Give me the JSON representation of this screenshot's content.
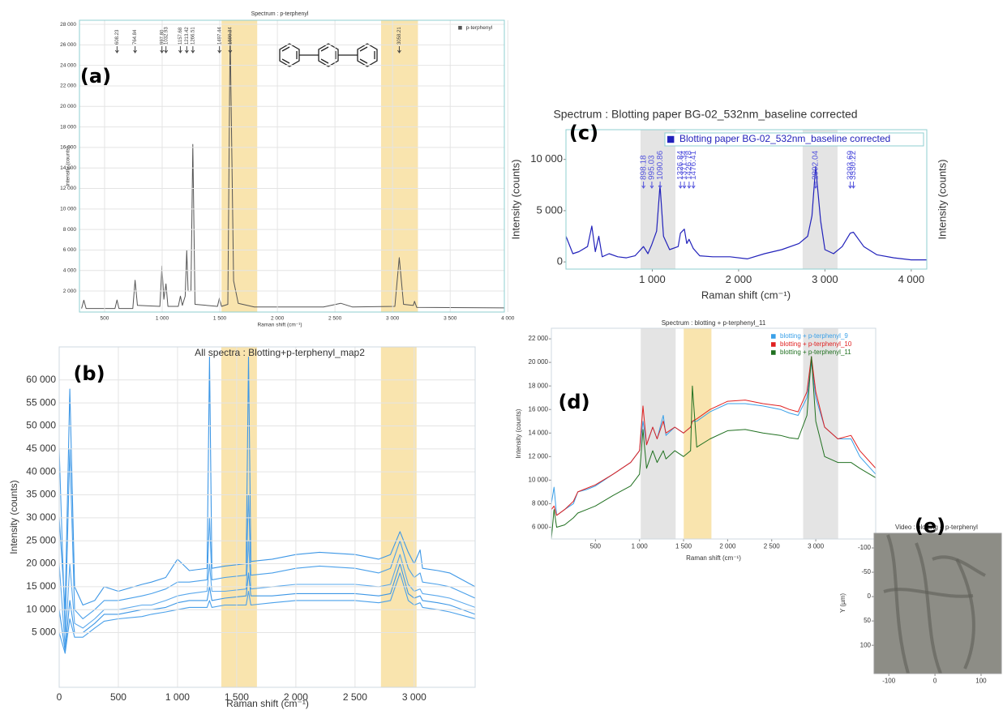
{
  "chart_data": [
    {
      "type": "line",
      "panel_label": "(a)",
      "title": "Spectrum : p-terphenyl",
      "xlabel": "Raman shift (cm⁻¹)",
      "ylabel": "Intensity (counts)",
      "xlim": [
        282,
        3970
      ],
      "ylim": [
        -50,
        28400
      ],
      "grid": true,
      "legend": "upper right",
      "xticks": [
        500,
        {
          "value": 1000,
          "label": "1 000"
        },
        {
          "value": 1500,
          "label": "1 500"
        },
        {
          "value": 2000,
          "label": "2 000"
        },
        {
          "value": 2500,
          "label": "2 500"
        },
        {
          "value": 3000,
          "label": "3 000"
        },
        {
          "value": 3500,
          "label": "3 500"
        },
        {
          "value": 4000,
          "label": "4 000"
        }
      ],
      "yticks": [
        {
          "value": 2000,
          "label": "2 000"
        },
        {
          "value": 4000,
          "label": "4 000"
        },
        {
          "value": 6000,
          "label": "6 000"
        },
        {
          "value": 8000,
          "label": "8 000"
        },
        {
          "value": 10000,
          "label": "10 000"
        },
        {
          "value": 12000,
          "label": "12 000"
        },
        {
          "value": 14000,
          "label": "14 000"
        },
        {
          "value": 16000,
          "label": "16 000"
        },
        {
          "value": 18000,
          "label": "18 000"
        },
        {
          "value": 20000,
          "label": "20 000"
        },
        {
          "value": 22000,
          "label": "22 000"
        },
        {
          "value": 24000,
          "label": "24 000"
        },
        {
          "value": 26000,
          "label": "26 000"
        },
        {
          "value": 28000,
          "label": "28 000"
        }
      ],
      "bands": [
        {
          "x": [
            1515,
            1825
          ],
          "color": "#f6d98c"
        },
        {
          "x": [
            2900,
            3220
          ],
          "color": "#f6d98c"
        }
      ],
      "peak_labels": [
        608.23,
        764.84,
        {
          "value": 997.8,
          "label": "997.80"
        },
        1032.93,
        1157.68,
        1213.42,
        1266.51,
        1497.44,
        1590.34,
        3058.21
      ],
      "x": [
        300,
        320,
        340,
        590,
        608,
        625,
        745,
        765,
        785,
        980,
        998,
        1015,
        1033,
        1050,
        1140,
        1158,
        1175,
        1200,
        1213,
        1225,
        1250,
        1266,
        1285,
        1480,
        1497,
        1515,
        1570,
        1590,
        1620,
        1660,
        1800,
        2400,
        2550,
        2650,
        3020,
        3058,
        3095,
        3180,
        3190,
        3210,
        3970
      ],
      "series": [
        {
          "name": "p-terphenyl",
          "color": "#555555",
          "values": [
            300,
            1100,
            300,
            300,
            1130,
            300,
            300,
            3050,
            600,
            500,
            4450,
            1200,
            2700,
            500,
            500,
            1500,
            600,
            1500,
            5950,
            2000,
            2000,
            16300,
            700,
            500,
            1300,
            500,
            700,
            27400,
            3000,
            800,
            450,
            450,
            800,
            450,
            500,
            5250,
            700,
            600,
            1000,
            400,
            350
          ]
        }
      ]
    },
    {
      "type": "line",
      "panel_label": "(b)",
      "title": "All spectra : Blotting+p-terphenyl_map2",
      "xlabel": "Raman shift (cm⁻¹)",
      "ylabel": "Intensity (counts)",
      "xlim": [
        0,
        3515
      ],
      "ylim": [
        -6900,
        67200
      ],
      "grid": true,
      "xticks": [
        0,
        500,
        {
          "value": 1000,
          "label": "1 000"
        },
        {
          "value": 1500,
          "label": "1 500"
        },
        {
          "value": 2000,
          "label": "2 000"
        },
        {
          "value": 2500,
          "label": "2 500"
        },
        {
          "value": 3000,
          "label": "3 000"
        }
      ],
      "yticks": [
        {
          "value": 5000,
          "label": "5 000"
        },
        {
          "value": 10000,
          "label": "10 000"
        },
        {
          "value": 15000,
          "label": "15 000"
        },
        {
          "value": 20000,
          "label": "20 000"
        },
        {
          "value": 25000,
          "label": "25 000"
        },
        {
          "value": 30000,
          "label": "30 000"
        },
        {
          "value": 35000,
          "label": "35 000"
        },
        {
          "value": 40000,
          "label": "40 000"
        },
        {
          "value": 45000,
          "label": "45 000"
        },
        {
          "value": 50000,
          "label": "50 000"
        },
        {
          "value": 55000,
          "label": "55 000"
        },
        {
          "value": 60000,
          "label": "60 000"
        }
      ],
      "bands": [
        {
          "x": [
            1370,
            1671
          ],
          "color": "#f6d98c"
        },
        {
          "x": [
            2719,
            3020
          ],
          "color": "#f6d98c"
        }
      ],
      "x": [
        0,
        50,
        90,
        130,
        200,
        300,
        380,
        500,
        700,
        780,
        900,
        1000,
        1100,
        1250,
        1270,
        1290,
        1400,
        1580,
        1600,
        1620,
        1800,
        2000,
        2200,
        2500,
        2700,
        2800,
        2880,
        2950,
        3000,
        3050,
        3070,
        3200,
        3300,
        3515
      ],
      "series": [
        {
          "color": "#3d97e6",
          "values": [
            30000,
            10000,
            58000,
            15000,
            11000,
            12000,
            15000,
            14000,
            15500,
            16000,
            17000,
            21000,
            18500,
            19000,
            65000,
            19000,
            19500,
            20000,
            65000,
            20500,
            21000,
            22000,
            22500,
            22000,
            21000,
            22000,
            27000,
            22500,
            20000,
            23000,
            19000,
            18500,
            18000,
            15000
          ]
        },
        {
          "color": "#4aa0ea",
          "values": [
            45000,
            5000,
            45000,
            10000,
            8000,
            10000,
            12000,
            12000,
            13000,
            13500,
            14500,
            16000,
            16000,
            16500,
            30000,
            16500,
            17000,
            17500,
            35000,
            17500,
            18000,
            19000,
            19500,
            19000,
            18000,
            19000,
            25000,
            19000,
            17000,
            18000,
            16000,
            15500,
            15000,
            12500
          ]
        },
        {
          "color": "#5aa8ec",
          "values": [
            20000,
            2000,
            20000,
            7000,
            6000,
            8000,
            10000,
            10000,
            11000,
            11000,
            12000,
            13000,
            13500,
            14000,
            20000,
            14000,
            14000,
            14500,
            25000,
            14500,
            15000,
            15500,
            15500,
            15500,
            15000,
            15500,
            22000,
            15500,
            14000,
            14500,
            13500,
            13000,
            12500,
            10500
          ]
        },
        {
          "color": "#3d97e6",
          "values": [
            10000,
            1000,
            12000,
            5000,
            5000,
            7000,
            9000,
            9000,
            10000,
            10000,
            10500,
            11500,
            12000,
            12000,
            15000,
            12000,
            12500,
            13000,
            18000,
            13000,
            13000,
            13500,
            13500,
            13500,
            13000,
            13500,
            20000,
            13500,
            12500,
            13000,
            12000,
            11500,
            11000,
            9000
          ]
        },
        {
          "color": "#4aa0ea",
          "values": [
            5000,
            500,
            8000,
            4000,
            4000,
            6000,
            7500,
            8000,
            8500,
            9000,
            9500,
            10000,
            10500,
            10500,
            12000,
            10500,
            11000,
            11000,
            14000,
            11000,
            11500,
            12000,
            12000,
            12000,
            11500,
            12000,
            18000,
            12000,
            11000,
            11500,
            10500,
            10000,
            9500,
            8000
          ]
        }
      ]
    },
    {
      "type": "line",
      "panel_label": "(c)",
      "title": "Spectrum : Blotting paper BG-02_532nm_baseline corrected",
      "xlabel": "Raman shift (cm⁻¹)",
      "ylabel": "Intensity (counts)",
      "y2label": "Intensity (counts)",
      "xlim": [
        0,
        4180
      ],
      "ylim": [
        -700,
        12900
      ],
      "grid": false,
      "legend": "upper right",
      "xticks": [
        {
          "value": 1000,
          "label": "1 000"
        },
        {
          "value": 2000,
          "label": "2 000"
        },
        {
          "value": 3000,
          "label": "3 000"
        },
        {
          "value": 4000,
          "label": "4 000"
        }
      ],
      "yticks": [
        0,
        {
          "value": 5000,
          "label": "5 000"
        },
        {
          "value": 10000,
          "label": "10 000"
        }
      ],
      "bands": [
        {
          "x": [
            864,
            1268
          ],
          "color": "#d9d9d9"
        },
        {
          "x": [
            2742,
            3146
          ],
          "color": "#d9d9d9"
        }
      ],
      "peak_labels": [
        898.18,
        995.03,
        1090.86,
        1326.84,
        1371.34,
        1426.78,
        1476.41,
        2892.04,
        3293.69,
        3330.22
      ],
      "x": [
        0,
        80,
        150,
        250,
        300,
        340,
        380,
        420,
        500,
        600,
        700,
        800,
        898,
        950,
        995,
        1050,
        1090,
        1130,
        1200,
        1300,
        1326,
        1371,
        1400,
        1426,
        1476,
        1550,
        1700,
        1900,
        2100,
        2300,
        2500,
        2700,
        2800,
        2850,
        2892,
        2950,
        3000,
        3100,
        3200,
        3293,
        3330,
        3450,
        3600,
        3800,
        4000,
        4180
      ],
      "series": [
        {
          "name": "Blotting paper BG-02_532nm_baseline corrected",
          "color": "#2222bb",
          "values": [
            2500,
            800,
            1000,
            1500,
            3500,
            1000,
            2500,
            500,
            800,
            500,
            400,
            600,
            1500,
            800,
            1700,
            3000,
            7500,
            2500,
            1200,
            1500,
            2800,
            3200,
            1800,
            2200,
            1300,
            600,
            500,
            500,
            300,
            800,
            1200,
            1800,
            2500,
            4500,
            9300,
            4000,
            1200,
            800,
            1500,
            2800,
            2900,
            1500,
            700,
            400,
            200,
            200
          ]
        }
      ]
    },
    {
      "type": "line",
      "panel_label": "(d)",
      "title": "Spectrum : blotting + p-terphenyl_11",
      "xlabel": "Raman shift (cm⁻¹)",
      "ylabel": "Intensity (counts)",
      "xlim": [
        0,
        3680
      ],
      "ylim": [
        5000,
        22900
      ],
      "grid": false,
      "legend": "upper right",
      "xticks": [
        500,
        {
          "value": 1000,
          "label": "1 000"
        },
        {
          "value": 1500,
          "label": "1 500"
        },
        {
          "value": 2000,
          "label": "2 000"
        },
        {
          "value": 2500,
          "label": "2 500"
        },
        {
          "value": 3000,
          "label": "3 000"
        }
      ],
      "yticks": [
        {
          "value": 6000,
          "label": "6 000"
        },
        {
          "value": 8000,
          "label": "8 000"
        },
        {
          "value": 10000,
          "label": "10 000"
        },
        {
          "value": 12000,
          "label": "12 000"
        },
        {
          "value": 14000,
          "label": "14 000"
        },
        {
          "value": 16000,
          "label": "16 000"
        },
        {
          "value": 18000,
          "label": "18 000"
        },
        {
          "value": 20000,
          "label": "20 000"
        },
        {
          "value": 22000,
          "label": "22 000"
        }
      ],
      "bands": [
        {
          "x": [
            1014,
            1410
          ],
          "color": "#d9d9d9"
        },
        {
          "x": [
            1502,
            1816
          ],
          "color": "#f6d98c"
        },
        {
          "x": [
            2857,
            3254
          ],
          "color": "#d9d9d9"
        }
      ],
      "x": [
        0,
        30,
        60,
        150,
        250,
        300,
        400,
        500,
        700,
        900,
        1000,
        1040,
        1080,
        1150,
        1200,
        1270,
        1300,
        1400,
        1500,
        1580,
        1600,
        1650,
        1800,
        2000,
        2200,
        2400,
        2600,
        2700,
        2800,
        2900,
        2950,
        3000,
        3100,
        3250,
        3400,
        3500,
        3680
      ],
      "series": [
        {
          "name": "blotting + p-terphenyl_9",
          "color": "#3aa0e8",
          "values": [
            8000,
            9400,
            7000,
            7500,
            8000,
            9000,
            9200,
            9500,
            10500,
            11500,
            12500,
            15000,
            13000,
            14500,
            13500,
            15500,
            13800,
            14500,
            14000,
            14500,
            15000,
            15000,
            15800,
            16500,
            16500,
            16300,
            16000,
            15700,
            15500,
            17000,
            20000,
            17000,
            14500,
            13500,
            13500,
            12000,
            10500
          ]
        },
        {
          "name": "blotting + p-terphenyl_10",
          "color": "#e02020",
          "values": [
            7500,
            7800,
            7000,
            7500,
            8200,
            9000,
            9300,
            9600,
            10500,
            11500,
            12500,
            16300,
            13000,
            14500,
            13500,
            15000,
            14000,
            14500,
            14000,
            14500,
            15000,
            15200,
            16000,
            16700,
            16800,
            16500,
            16300,
            16000,
            15800,
            17500,
            20500,
            17500,
            14500,
            13500,
            13800,
            12500,
            11000
          ]
        },
        {
          "name": "blotting + p-terphenyl_11",
          "color": "#207020",
          "values": [
            5000,
            7500,
            6000,
            6200,
            6800,
            7200,
            7500,
            7800,
            8700,
            9500,
            10500,
            14300,
            11000,
            12500,
            11500,
            12500,
            11800,
            12500,
            12000,
            12500,
            18000,
            12800,
            13500,
            14200,
            14300,
            14000,
            13800,
            13600,
            13500,
            15500,
            20500,
            15000,
            12000,
            11500,
            11500,
            11000,
            10200
          ]
        }
      ]
    },
    {
      "type": "image",
      "panel_label": "(e)",
      "title": "Video : blotting + p-terphenyl",
      "ylabel": "Y (µm)",
      "xlim": [
        -132,
        144
      ],
      "ylim": [
        -130,
        158
      ],
      "yreverse": true,
      "xticks": [
        -100,
        0,
        100
      ],
      "yticks": [
        -100,
        -50,
        0,
        50,
        100
      ]
    }
  ]
}
